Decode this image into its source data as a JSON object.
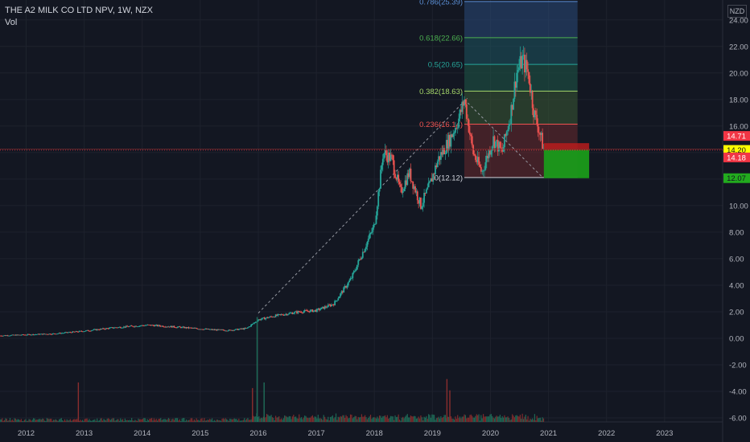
{
  "header": {
    "title": "THE A2 MILK CO LTD NPV, 1W, NZX",
    "volume_label": "Vol",
    "currency": "NZD"
  },
  "colors": {
    "background": "#131722",
    "grid": "#1e222d",
    "text": "#b2b5be",
    "up": "#26a69a",
    "down": "#ef5350",
    "fib_line_up": "#4caf50",
    "loss_zone": "#b71c1c",
    "profit_zone": "#1a9b1a",
    "price_line": "#f23645"
  },
  "chart_data": {
    "type": "candlestick",
    "title": "THE A2 MILK CO LTD NPV, 1W, NZX",
    "currency": "NZD",
    "ylim": [
      -6.3,
      25.5
    ],
    "xlim": [
      2011.55,
      2024.0
    ],
    "y_ticks": [
      "24.00",
      "22.00",
      "20.00",
      "18.00",
      "16.00",
      "14.00",
      "12.00",
      "10.00",
      "8.00",
      "6.00",
      "4.00",
      "2.00",
      "0.00",
      "-2.00",
      "-4.00",
      "-6.00"
    ],
    "x_ticks": [
      "2012",
      "2013",
      "2014",
      "2015",
      "2016",
      "2017",
      "2018",
      "2019",
      "2020",
      "2021",
      "2022",
      "2023"
    ],
    "price_path": [
      [
        2011.55,
        0.2
      ],
      [
        2012.5,
        0.35
      ],
      [
        2013.0,
        0.55
      ],
      [
        2013.5,
        0.8
      ],
      [
        2014.1,
        1.0
      ],
      [
        2014.6,
        0.85
      ],
      [
        2015.2,
        0.65
      ],
      [
        2015.5,
        0.6
      ],
      [
        2015.8,
        0.75
      ],
      [
        2016.0,
        1.4
      ],
      [
        2016.3,
        1.7
      ],
      [
        2016.7,
        2.0
      ],
      [
        2017.0,
        2.1
      ],
      [
        2017.3,
        2.6
      ],
      [
        2017.6,
        4.5
      ],
      [
        2017.8,
        6.5
      ],
      [
        2018.0,
        8.5
      ],
      [
        2018.1,
        12.0
      ],
      [
        2018.15,
        14.0
      ],
      [
        2018.3,
        13.5
      ],
      [
        2018.45,
        11.0
      ],
      [
        2018.6,
        12.5
      ],
      [
        2018.8,
        10.0
      ],
      [
        2018.95,
        11.5
      ],
      [
        2019.1,
        13.5
      ],
      [
        2019.3,
        15.0
      ],
      [
        2019.45,
        16.5
      ],
      [
        2019.55,
        18.0
      ],
      [
        2019.7,
        14.0
      ],
      [
        2019.85,
        12.5
      ],
      [
        2020.05,
        15.0
      ],
      [
        2020.2,
        14.0
      ],
      [
        2020.35,
        17.0
      ],
      [
        2020.45,
        20.0
      ],
      [
        2020.55,
        21.0
      ],
      [
        2020.65,
        20.0
      ],
      [
        2020.75,
        17.0
      ],
      [
        2020.85,
        15.5
      ],
      [
        2020.92,
        14.2
      ]
    ],
    "fibonacci_retracement": {
      "from": {
        "x": 2019.55,
        "price": 18.0
      },
      "to": {
        "x": 2020.9,
        "price": 12.12
      },
      "levels": [
        {
          "label": "0.786(25.39)",
          "ratio": 0.786,
          "price": 25.39
        },
        {
          "label": "0.618(22.66)",
          "ratio": 0.618,
          "price": 22.66
        },
        {
          "label": "0.5(20.65)",
          "ratio": 0.5,
          "price": 20.65
        },
        {
          "label": "0.382(18.63)",
          "ratio": 0.382,
          "price": 18.63
        },
        {
          "label": "0.236(16.14)",
          "ratio": 0.236,
          "price": 16.14
        },
        {
          "label": "0(12.12)",
          "ratio": 0,
          "price": 12.12
        }
      ]
    },
    "trend_line": {
      "from": {
        "x": 2016.0,
        "price": 1.9
      },
      "to": {
        "x": 2019.6,
        "price": 18.1
      }
    },
    "position": {
      "x_start": 2020.92,
      "x_end": 2021.7,
      "stop": 14.71,
      "entry": 14.2,
      "target": 12.07
    },
    "price_labels": [
      {
        "text": "14.71",
        "price": 14.71,
        "kind": "stop"
      },
      {
        "text": "14.20",
        "price": 14.2,
        "kind": "entry"
      },
      {
        "text": "14.18",
        "price": 14.18,
        "kind": "last"
      },
      {
        "text": "12.07",
        "price": 12.07,
        "kind": "target"
      }
    ],
    "volume_spikes": [
      {
        "x": 2012.9,
        "level": 0.35
      },
      {
        "x": 2015.9,
        "level": 0.3
      },
      {
        "x": 2015.98,
        "level": 0.93
      },
      {
        "x": 2016.1,
        "level": 0.35
      },
      {
        "x": 2019.25,
        "level": 0.38
      },
      {
        "x": 2019.3,
        "level": 0.28
      }
    ]
  }
}
